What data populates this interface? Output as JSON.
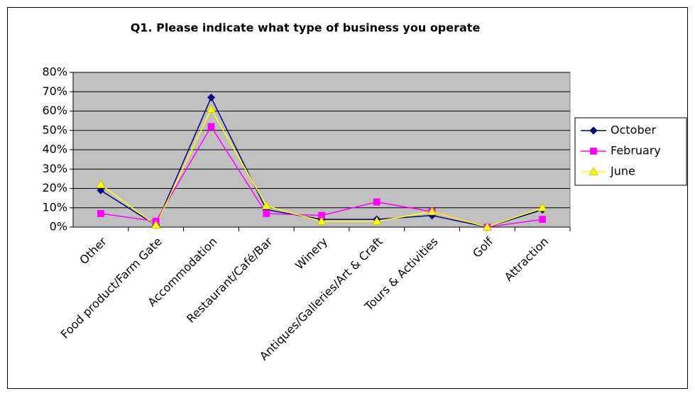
{
  "chart_data": {
    "type": "line",
    "title": "Q1. Please indicate what type of business you operate",
    "categories": [
      "Other",
      "Food product/Farm Gate",
      "Accommodation",
      "Restaurant/Café/Bar",
      "Winery",
      "Antiques/Galleries/Art & Craft",
      "Tours & Activities",
      "Golf",
      "Attraction"
    ],
    "series": [
      {
        "name": "October",
        "color": "#000080",
        "marker": "diamond",
        "values": [
          19,
          1,
          67,
          9,
          4,
          4,
          6,
          0,
          9
        ]
      },
      {
        "name": "February",
        "color": "#ff00ff",
        "marker": "square",
        "values": [
          7,
          3,
          52,
          7,
          6,
          13,
          8,
          0,
          4
        ]
      },
      {
        "name": "June",
        "color": "#ffff00",
        "marker": "triangle",
        "values": [
          22,
          1,
          61,
          11,
          3,
          3,
          8,
          0,
          10
        ]
      }
    ],
    "ylim": [
      0,
      80
    ],
    "yticks": [
      {
        "value": 0,
        "label": "0%"
      },
      {
        "value": 10,
        "label": "10%"
      },
      {
        "value": 20,
        "label": "20%"
      },
      {
        "value": 30,
        "label": "30%"
      },
      {
        "value": 40,
        "label": "40%"
      },
      {
        "value": 50,
        "label": "50%"
      },
      {
        "value": 60,
        "label": "60%"
      },
      {
        "value": 70,
        "label": "70%"
      },
      {
        "value": 80,
        "label": "80%"
      }
    ],
    "grid": true,
    "legend": "right"
  }
}
